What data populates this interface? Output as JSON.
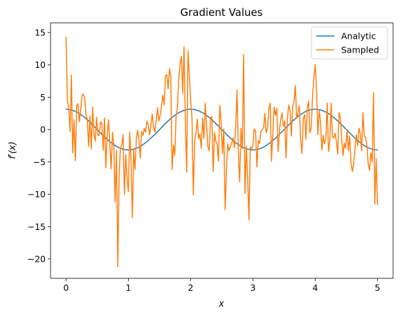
{
  "chart_data": {
    "type": "line",
    "title": "Gradient Values",
    "xlabel": "x",
    "ylabel": "f′(x)",
    "xlim": [
      -0.25,
      5.25
    ],
    "ylim": [
      -23.0,
      16.5
    ],
    "xticks": [
      0,
      1,
      2,
      3,
      4,
      5
    ],
    "yticks": [
      15,
      10,
      5,
      0,
      -5,
      -10,
      -15,
      -20
    ],
    "ytick_labels": [
      "15",
      "10",
      "5",
      "0",
      "−5",
      "−10",
      "−15",
      "−20"
    ],
    "grid": false,
    "legend_position": "top-right",
    "series": [
      {
        "name": "Analytic",
        "color": "#1f77b4",
        "function": "pi*cos(pi*x)",
        "x_start": 0,
        "x_end": 5,
        "y": []
      },
      {
        "name": "Sampled",
        "color": "#ff7f0e",
        "x_start": 0,
        "x_end": 5,
        "y": [
          14.3,
          4.3,
          3.5,
          -0.3,
          8.4,
          -3.6,
          1.5,
          -4.8,
          3.7,
          4.0,
          1.2,
          3.0,
          5.2,
          5.5,
          4.9,
          2.3,
          1.6,
          -2.6,
          2.1,
          -3.0,
          3.5,
          -0.6,
          -1.8,
          1.9,
          -0.9,
          -0.9,
          1.2,
          0.9,
          -3.2,
          1.8,
          -5.9,
          -1.2,
          1.5,
          -2.3,
          -6.1,
          -0.4,
          -2.4,
          -11.2,
          -3.2,
          -21.2,
          -7.2,
          -2.8,
          -2.4,
          -0.8,
          -10.0,
          -3.9,
          -7.4,
          -9.6,
          -0.4,
          -4.7,
          -13.6,
          -3.1,
          -6.2,
          -1.4,
          -0.1,
          -1.7,
          -4.4,
          -0.3,
          -0.9,
          0.2,
          -0.4,
          1.3,
          0.8,
          -0.8,
          0.6,
          2.4,
          0.5,
          -0.4,
          1.3,
          3.4,
          1.3,
          2.2,
          3.6,
          5.3,
          3.8,
          8.3,
          8.5,
          6.3,
          9.4,
          8.2,
          -6.2,
          -2.4,
          -4.0,
          2.0,
          3.5,
          7.9,
          10.1,
          11.3,
          5.6,
          12.8,
          1.2,
          -6.6,
          12.2,
          8.3,
          4.5,
          1.8,
          -10.1,
          -1.8,
          -0.6,
          1.6,
          -1.4,
          -0.7,
          -2.9,
          1.8,
          -1.4,
          4.1,
          0.6,
          -2.6,
          -3.3,
          1.8,
          2.0,
          -6.5,
          -0.5,
          -1.8,
          -2.2,
          -4.9,
          3.7,
          1.2,
          -3.7,
          0.1,
          -12.4,
          -6.3,
          -2.2,
          -3.3,
          -2.6,
          -2.1,
          -1.3,
          -2.8,
          0.5,
          6.1,
          -3.6,
          -8.1,
          0.2,
          -3.0,
          11.6,
          -9.9,
          -2.6,
          -7.5,
          -14.0,
          -2.7,
          -3.0,
          -2.2,
          0.1,
          -0.2,
          -5.8,
          -1.7,
          -2.1,
          -0.2,
          -0.1,
          0.3,
          2.5,
          -0.5,
          0.2,
          3.2,
          4.1,
          -4.9,
          -0.6,
          3.5,
          2.2,
          3.3,
          -3.4,
          -0.1,
          1.6,
          2.6,
          0.5,
          1.3,
          -4.4,
          1.7,
          3.8,
          3.0,
          -1.0,
          3.6,
          4.3,
          6.8,
          1.7,
          2.6,
          3.7,
          -1.7,
          -3.7,
          1.7,
          2.3,
          -1.5,
          3.3,
          4.4,
          -0.5,
          0.2,
          5.2,
          8.1,
          10.1,
          6.1,
          -0.8,
          2.9,
          1.2,
          -3.2,
          -0.9,
          -2.2,
          -1.4,
          4.1,
          -3.4,
          -1.8,
          4.1,
          -1.1,
          -1.3,
          -0.6,
          -1.8,
          -3.8,
          2.6,
          1.9,
          -1.5,
          -4.0,
          -2.1,
          -2.9,
          -0.1,
          -3.3,
          -1.0,
          -5.2,
          -6.5,
          -5.3,
          -2.9,
          -0.8,
          -2.5,
          0.2,
          -0.6,
          -3.3,
          2.6,
          -1.0,
          -1.2,
          -2.5,
          -5.3,
          -6.3,
          -3.6,
          -5.0,
          5.7,
          -11.5,
          -4.5,
          -11.6
        ]
      }
    ]
  }
}
